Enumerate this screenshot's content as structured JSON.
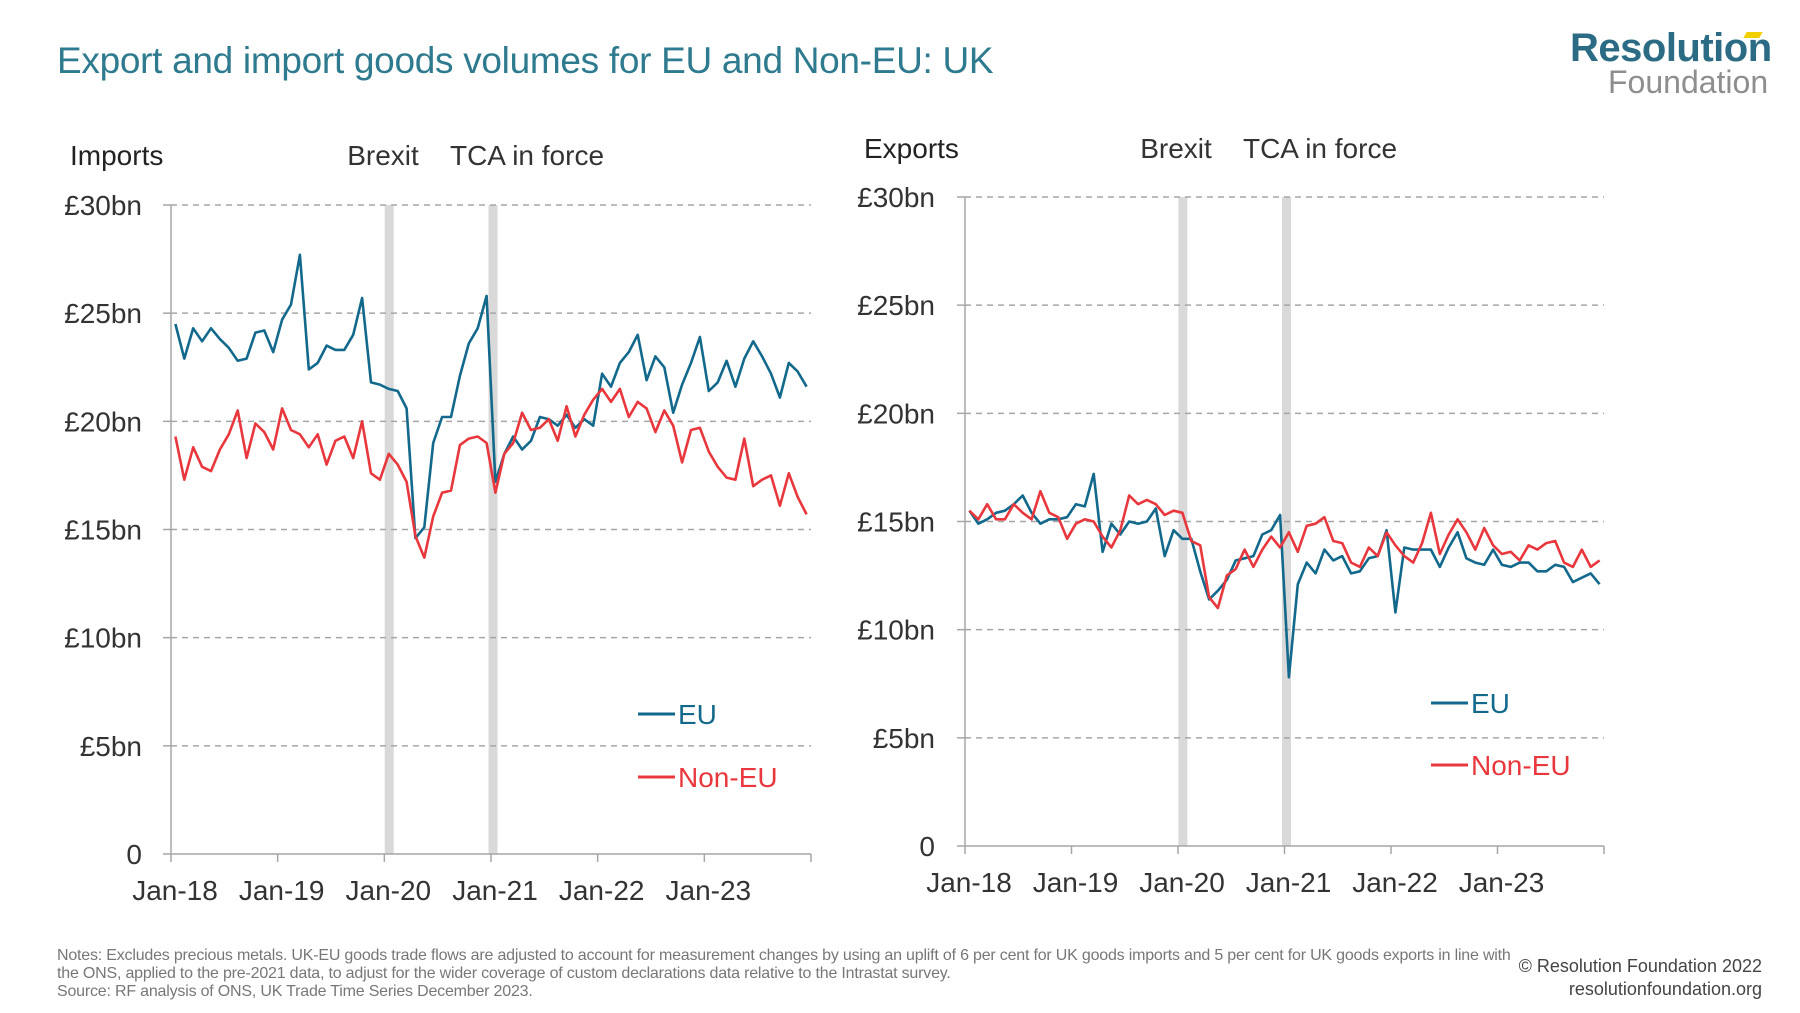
{
  "title": "Export and import goods volumes for EU and Non-EU: UK",
  "logo": {
    "line1": "Resolution",
    "line2": "Foundation",
    "colors": {
      "primary": "#2b6c84",
      "secondary": "#8e8e8e",
      "accent": "#f2cf00"
    }
  },
  "notes": [
    "Notes: Excludes precious metals. UK-EU goods trade flows are adjusted to account for measurement changes by using an uplift of 6 per cent for UK goods imports and 5 per cent for UK goods exports in line with the ONS, applied to the pre-2021 data, to adjust for the wider coverage of custom declarations data relative to the Intrastat survey.",
    "Source: RF analysis of ONS, UK Trade Time Series December 2023."
  ],
  "copyright": "© Resolution Foundation 2022",
  "website": "resolutionfoundation.org",
  "chart_data": [
    {
      "type": "line",
      "title": "Imports",
      "x_start": "Jan-18",
      "x_end": "Dec-23",
      "frequency": "monthly",
      "xticks": [
        "Jan-18",
        "Jan-19",
        "Jan-20",
        "Jan-21",
        "Jan-22",
        "Jan-23"
      ],
      "yticks": [
        "0",
        "£5bn",
        "£10bn",
        "£15bn",
        "£20bn",
        "£25bn",
        "£30bn"
      ],
      "ylim": [
        0,
        30
      ],
      "unit": "£bn",
      "grid": "horizontal dashed",
      "legend": "bottom-right",
      "events": [
        {
          "label": "Brexit",
          "date": "Feb-20"
        },
        {
          "label": "TCA in force",
          "date": "Jan-21"
        }
      ],
      "series": [
        {
          "name": "EU",
          "color": "#13698c",
          "values": [
            24.5,
            22.9,
            24.3,
            23.7,
            24.3,
            23.8,
            23.4,
            22.8,
            22.9,
            24.1,
            24.2,
            23.2,
            24.7,
            25.4,
            27.7,
            22.4,
            22.7,
            23.5,
            23.3,
            23.3,
            24.0,
            25.7,
            21.8,
            21.7,
            21.5,
            21.4,
            20.6,
            14.6,
            15.1,
            19.0,
            20.2,
            20.2,
            22.1,
            23.6,
            24.3,
            25.8,
            17.2,
            18.5,
            19.3,
            18.7,
            19.1,
            20.2,
            20.1,
            19.8,
            20.3,
            19.7,
            20.1,
            19.8,
            22.2,
            21.6,
            22.7,
            23.2,
            24.0,
            21.9,
            23.0,
            22.5,
            20.4,
            21.7,
            22.7,
            23.9,
            21.4,
            21.8,
            22.8,
            21.6,
            22.9,
            23.7,
            23.0,
            22.2,
            21.1,
            22.7,
            22.3,
            21.6
          ]
        },
        {
          "name": "Non-EU",
          "color": "#e8383d",
          "values": [
            19.3,
            17.3,
            18.8,
            17.9,
            17.7,
            18.7,
            19.4,
            20.5,
            18.3,
            19.9,
            19.5,
            18.7,
            20.6,
            19.6,
            19.4,
            18.8,
            19.4,
            18.0,
            19.1,
            19.3,
            18.3,
            20.0,
            17.6,
            17.3,
            18.5,
            18.0,
            17.2,
            14.7,
            13.7,
            15.6,
            16.7,
            16.8,
            18.9,
            19.2,
            19.3,
            19.0,
            16.7,
            18.5,
            19.0,
            20.4,
            19.6,
            19.7,
            20.1,
            19.1,
            20.7,
            19.3,
            20.3,
            21.0,
            21.5,
            20.9,
            21.5,
            20.2,
            20.9,
            20.6,
            19.5,
            20.5,
            19.8,
            18.1,
            19.6,
            19.7,
            18.6,
            17.9,
            17.4,
            17.3,
            19.2,
            17.0,
            17.3,
            17.5,
            16.1,
            17.6,
            16.5,
            15.7
          ]
        }
      ]
    },
    {
      "type": "line",
      "title": "Exports",
      "x_start": "Jan-18",
      "x_end": "Dec-23",
      "frequency": "monthly",
      "xticks": [
        "Jan-18",
        "Jan-19",
        "Jan-20",
        "Jan-21",
        "Jan-22",
        "Jan-23"
      ],
      "yticks": [
        "0",
        "£5bn",
        "£10bn",
        "£15bn",
        "£20bn",
        "£25bn",
        "£30bn"
      ],
      "ylim": [
        0,
        30
      ],
      "unit": "£bn",
      "grid": "horizontal dashed",
      "legend": "bottom-right",
      "events": [
        {
          "label": "Brexit",
          "date": "Feb-20"
        },
        {
          "label": "TCA in force",
          "date": "Jan-21"
        }
      ],
      "series": [
        {
          "name": "EU",
          "color": "#13698c",
          "values": [
            15.5,
            14.9,
            15.1,
            15.4,
            15.5,
            15.8,
            16.2,
            15.4,
            14.9,
            15.1,
            15.1,
            15.2,
            15.8,
            15.7,
            17.2,
            13.6,
            14.9,
            14.4,
            15.0,
            14.9,
            15.0,
            15.6,
            13.4,
            14.6,
            14.2,
            14.2,
            12.7,
            11.4,
            11.8,
            12.3,
            13.2,
            13.3,
            13.4,
            14.4,
            14.6,
            15.3,
            7.8,
            12.1,
            13.1,
            12.6,
            13.7,
            13.2,
            13.4,
            12.6,
            12.7,
            13.3,
            13.4,
            14.6,
            10.8,
            13.8,
            13.7,
            13.7,
            13.7,
            12.9,
            13.8,
            14.5,
            13.3,
            13.1,
            13.0,
            13.7,
            13.0,
            12.9,
            13.1,
            13.1,
            12.7,
            12.7,
            13.0,
            12.9,
            12.2,
            12.4,
            12.6,
            12.1
          ]
        },
        {
          "name": "Non-EU",
          "color": "#e8383d",
          "values": [
            15.5,
            15.1,
            15.8,
            15.1,
            15.1,
            15.8,
            15.4,
            15.1,
            16.4,
            15.4,
            15.2,
            14.2,
            14.9,
            15.1,
            15.0,
            14.3,
            13.8,
            14.6,
            16.2,
            15.8,
            16.0,
            15.8,
            15.3,
            15.5,
            15.4,
            14.1,
            13.9,
            11.5,
            11.0,
            12.5,
            12.8,
            13.7,
            12.9,
            13.7,
            14.3,
            13.8,
            14.5,
            13.6,
            14.8,
            14.9,
            15.2,
            14.1,
            14.0,
            13.1,
            12.9,
            13.8,
            13.4,
            14.5,
            13.9,
            13.4,
            13.1,
            14.0,
            15.4,
            13.5,
            14.4,
            15.1,
            14.5,
            13.7,
            14.7,
            13.9,
            13.5,
            13.6,
            13.2,
            13.9,
            13.7,
            14.0,
            14.1,
            13.1,
            12.9,
            13.7,
            12.9,
            13.2
          ]
        }
      ]
    }
  ]
}
